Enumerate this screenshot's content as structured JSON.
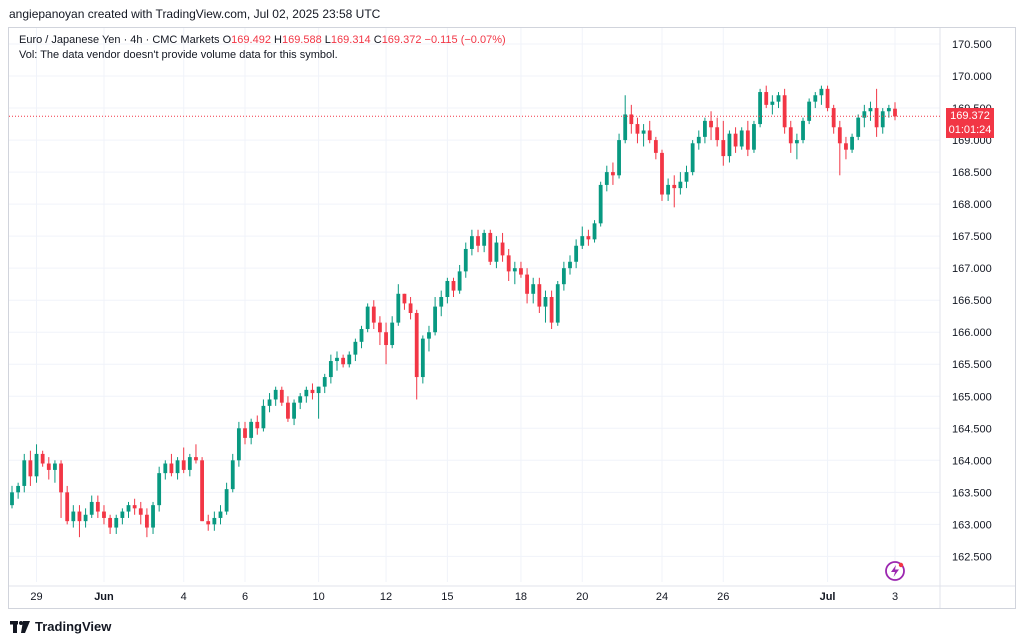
{
  "credit": "angiepanoyan created with TradingView.com, Jul 02, 2025 23:58 UTC",
  "legend": {
    "symbol": "Euro / Japanese Yen · 4h · CMC Markets",
    "o_label": "O",
    "o": "169.492",
    "h_label": "H",
    "h": "169.588",
    "l_label": "L",
    "l": "169.314",
    "c_label": "C",
    "c": "169.372",
    "change": "−0.115 (−0.07%)"
  },
  "vol_note": "Vol: The data vendor doesn't provide volume data for this symbol.",
  "last_price": {
    "price": "169.372",
    "countdown": "01:01:24"
  },
  "footer": {
    "brand": "TradingView"
  },
  "colors": {
    "up": "#089981",
    "down": "#f23645",
    "grid": "#f0f3fa",
    "axis_text": "#131722"
  },
  "icons": {
    "logo": "tradingview-logo-icon",
    "flash": "lightning-icon"
  },
  "chart_data": {
    "type": "candlestick",
    "title": "Euro / Japanese Yen · 4h · CMC Markets",
    "xlabel": "",
    "ylabel": "",
    "ylim": [
      162.1,
      170.75
    ],
    "y_ticks": [
      162.5,
      163.0,
      163.5,
      164.0,
      164.5,
      165.0,
      165.5,
      166.0,
      166.5,
      167.0,
      167.5,
      168.0,
      168.5,
      169.0,
      169.5,
      170.0,
      170.5
    ],
    "y_tick_labels": [
      "162.500",
      "163.000",
      "163.500",
      "164.000",
      "164.500",
      "165.000",
      "165.500",
      "166.000",
      "166.500",
      "167.000",
      "167.500",
      "168.000",
      "168.500",
      "169.000",
      "169.500",
      "170.000",
      "170.500"
    ],
    "x_ticks": [
      {
        "label": "29",
        "index": 4
      },
      {
        "label": "Jun",
        "index": 15
      },
      {
        "label": "4",
        "index": 28
      },
      {
        "label": "6",
        "index": 38
      },
      {
        "label": "10",
        "index": 50
      },
      {
        "label": "12",
        "index": 61
      },
      {
        "label": "15",
        "index": 71
      },
      {
        "label": "18",
        "index": 83
      },
      {
        "label": "20",
        "index": 93
      },
      {
        "label": "24",
        "index": 106
      },
      {
        "label": "26",
        "index": 116
      },
      {
        "label": "Jul",
        "index": 133
      },
      {
        "label": "3",
        "index": 144
      }
    ],
    "last_price": 169.372,
    "grid": true,
    "candles": [
      [
        163.3,
        163.6,
        163.25,
        163.5
      ],
      [
        163.5,
        163.65,
        163.4,
        163.6
      ],
      [
        163.6,
        164.1,
        163.5,
        164.0
      ],
      [
        164.0,
        164.15,
        163.6,
        163.75
      ],
      [
        163.75,
        164.25,
        163.65,
        164.1
      ],
      [
        164.1,
        164.15,
        163.9,
        163.95
      ],
      [
        163.95,
        164.05,
        163.7,
        163.85
      ],
      [
        163.85,
        164.0,
        163.65,
        163.95
      ],
      [
        163.95,
        164.0,
        163.1,
        163.5
      ],
      [
        163.5,
        163.6,
        163.0,
        163.05
      ],
      [
        163.05,
        163.3,
        162.95,
        163.2
      ],
      [
        163.2,
        163.3,
        162.8,
        163.05
      ],
      [
        163.05,
        163.25,
        162.95,
        163.15
      ],
      [
        163.15,
        163.45,
        163.1,
        163.35
      ],
      [
        163.35,
        163.45,
        163.1,
        163.2
      ],
      [
        163.2,
        163.3,
        163.0,
        163.1
      ],
      [
        163.1,
        163.15,
        162.85,
        162.95
      ],
      [
        162.95,
        163.15,
        162.85,
        163.1
      ],
      [
        163.1,
        163.25,
        163.0,
        163.2
      ],
      [
        163.2,
        163.35,
        163.1,
        163.3
      ],
      [
        163.3,
        163.4,
        163.15,
        163.25
      ],
      [
        163.25,
        163.35,
        163.0,
        163.15
      ],
      [
        163.15,
        163.25,
        162.8,
        162.95
      ],
      [
        162.95,
        163.35,
        162.85,
        163.3
      ],
      [
        163.3,
        163.9,
        163.2,
        163.8
      ],
      [
        163.8,
        164.0,
        163.7,
        163.95
      ],
      [
        163.95,
        164.1,
        163.75,
        163.8
      ],
      [
        163.8,
        164.05,
        163.7,
        164.0
      ],
      [
        164.0,
        164.2,
        163.8,
        163.85
      ],
      [
        163.85,
        164.1,
        163.75,
        164.05
      ],
      [
        164.05,
        164.25,
        163.95,
        164.0
      ],
      [
        164.0,
        164.05,
        163.05,
        163.05
      ],
      [
        163.05,
        163.15,
        162.9,
        163.0
      ],
      [
        163.0,
        163.2,
        162.9,
        163.1
      ],
      [
        163.1,
        163.3,
        163.0,
        163.2
      ],
      [
        163.2,
        163.65,
        163.15,
        163.55
      ],
      [
        163.55,
        164.1,
        163.5,
        164.0
      ],
      [
        164.0,
        164.6,
        163.9,
        164.5
      ],
      [
        164.5,
        164.6,
        164.25,
        164.35
      ],
      [
        164.35,
        164.65,
        164.25,
        164.6
      ],
      [
        164.6,
        164.7,
        164.4,
        164.5
      ],
      [
        164.5,
        164.95,
        164.45,
        164.85
      ],
      [
        164.85,
        165.05,
        164.75,
        164.95
      ],
      [
        164.95,
        165.15,
        164.85,
        165.1
      ],
      [
        165.1,
        165.15,
        164.85,
        164.9
      ],
      [
        164.9,
        165.0,
        164.6,
        164.65
      ],
      [
        164.65,
        164.95,
        164.55,
        164.9
      ],
      [
        164.9,
        165.05,
        164.8,
        165.0
      ],
      [
        165.0,
        165.15,
        164.9,
        165.1
      ],
      [
        165.1,
        165.2,
        164.95,
        165.05
      ],
      [
        165.05,
        165.15,
        164.65,
        165.15
      ],
      [
        165.15,
        165.35,
        165.05,
        165.3
      ],
      [
        165.3,
        165.65,
        165.2,
        165.55
      ],
      [
        165.55,
        165.7,
        165.4,
        165.6
      ],
      [
        165.6,
        165.65,
        165.45,
        165.5
      ],
      [
        165.5,
        165.7,
        165.45,
        165.65
      ],
      [
        165.65,
        165.9,
        165.55,
        165.85
      ],
      [
        165.85,
        166.1,
        165.75,
        166.05
      ],
      [
        166.05,
        166.45,
        166.0,
        166.4
      ],
      [
        166.4,
        166.5,
        166.05,
        166.15
      ],
      [
        166.15,
        166.25,
        165.8,
        166.0
      ],
      [
        166.0,
        166.15,
        165.5,
        165.8
      ],
      [
        165.8,
        166.25,
        165.75,
        166.15
      ],
      [
        166.15,
        166.75,
        166.1,
        166.6
      ],
      [
        166.6,
        166.6,
        166.35,
        166.45
      ],
      [
        166.45,
        166.55,
        166.2,
        166.3
      ],
      [
        166.3,
        166.35,
        164.95,
        165.3
      ],
      [
        165.3,
        165.95,
        165.2,
        165.9
      ],
      [
        165.9,
        166.1,
        165.7,
        166.0
      ],
      [
        166.0,
        166.55,
        165.95,
        166.4
      ],
      [
        166.4,
        166.65,
        166.25,
        166.55
      ],
      [
        166.55,
        166.85,
        166.45,
        166.8
      ],
      [
        166.8,
        166.85,
        166.55,
        166.65
      ],
      [
        166.65,
        167.05,
        166.6,
        166.95
      ],
      [
        166.95,
        167.4,
        166.85,
        167.3
      ],
      [
        167.3,
        167.6,
        167.2,
        167.5
      ],
      [
        167.5,
        167.6,
        167.25,
        167.35
      ],
      [
        167.35,
        167.6,
        167.25,
        167.55
      ],
      [
        167.55,
        167.6,
        167.05,
        167.1
      ],
      [
        167.1,
        167.5,
        167.0,
        167.4
      ],
      [
        167.4,
        167.55,
        167.1,
        167.2
      ],
      [
        167.2,
        167.3,
        166.8,
        166.95
      ],
      [
        166.95,
        167.1,
        166.75,
        167.0
      ],
      [
        167.0,
        167.1,
        166.85,
        166.9
      ],
      [
        166.9,
        167.0,
        166.45,
        166.6
      ],
      [
        166.6,
        166.85,
        166.45,
        166.75
      ],
      [
        166.75,
        166.85,
        166.3,
        166.4
      ],
      [
        166.4,
        166.65,
        166.15,
        166.55
      ],
      [
        166.55,
        166.65,
        166.05,
        166.15
      ],
      [
        166.15,
        166.8,
        166.1,
        166.75
      ],
      [
        166.75,
        167.1,
        166.65,
        167.0
      ],
      [
        167.0,
        167.2,
        166.9,
        167.1
      ],
      [
        167.1,
        167.45,
        167.0,
        167.35
      ],
      [
        167.35,
        167.65,
        167.3,
        167.5
      ],
      [
        167.5,
        167.6,
        167.35,
        167.45
      ],
      [
        167.45,
        167.75,
        167.4,
        167.7
      ],
      [
        167.7,
        168.35,
        167.65,
        168.3
      ],
      [
        168.3,
        168.6,
        168.2,
        168.5
      ],
      [
        168.5,
        168.65,
        168.3,
        168.45
      ],
      [
        168.45,
        169.1,
        168.4,
        169.0
      ],
      [
        169.0,
        169.7,
        168.95,
        169.4
      ],
      [
        169.4,
        169.55,
        169.1,
        169.25
      ],
      [
        169.25,
        169.35,
        168.95,
        169.1
      ],
      [
        169.1,
        169.25,
        168.9,
        169.15
      ],
      [
        169.15,
        169.3,
        168.95,
        169.0
      ],
      [
        169.0,
        169.05,
        168.7,
        168.8
      ],
      [
        168.8,
        168.85,
        168.05,
        168.15
      ],
      [
        168.15,
        168.4,
        168.05,
        168.3
      ],
      [
        168.3,
        168.45,
        167.95,
        168.25
      ],
      [
        168.25,
        168.5,
        168.15,
        168.35
      ],
      [
        168.35,
        168.6,
        168.25,
        168.5
      ],
      [
        168.5,
        169.0,
        168.45,
        168.95
      ],
      [
        168.95,
        169.15,
        168.85,
        169.05
      ],
      [
        169.05,
        169.35,
        168.95,
        169.3
      ],
      [
        169.3,
        169.45,
        169.0,
        169.2
      ],
      [
        169.2,
        169.35,
        168.9,
        169.0
      ],
      [
        169.0,
        169.3,
        168.6,
        168.75
      ],
      [
        168.75,
        169.15,
        168.65,
        169.1
      ],
      [
        169.1,
        169.2,
        168.8,
        168.9
      ],
      [
        168.9,
        169.2,
        168.85,
        169.15
      ],
      [
        169.15,
        169.3,
        168.75,
        168.85
      ],
      [
        168.85,
        169.3,
        168.8,
        169.25
      ],
      [
        169.25,
        169.8,
        169.2,
        169.75
      ],
      [
        169.75,
        169.85,
        169.5,
        169.55
      ],
      [
        169.55,
        169.7,
        169.4,
        169.6
      ],
      [
        169.6,
        169.75,
        169.5,
        169.7
      ],
      [
        169.7,
        169.8,
        169.1,
        169.2
      ],
      [
        169.2,
        169.3,
        168.8,
        168.95
      ],
      [
        168.95,
        169.1,
        168.7,
        169.0
      ],
      [
        169.0,
        169.35,
        168.95,
        169.3
      ],
      [
        169.3,
        169.65,
        169.25,
        169.6
      ],
      [
        169.6,
        169.75,
        169.5,
        169.7
      ],
      [
        169.7,
        169.85,
        169.55,
        169.8
      ],
      [
        169.8,
        169.85,
        169.45,
        169.5
      ],
      [
        169.5,
        169.55,
        169.1,
        169.2
      ],
      [
        169.2,
        169.3,
        168.45,
        168.95
      ],
      [
        168.95,
        169.05,
        168.7,
        168.85
      ],
      [
        168.85,
        169.1,
        168.8,
        169.05
      ],
      [
        169.05,
        169.4,
        169.0,
        169.35
      ],
      [
        169.35,
        169.55,
        169.2,
        169.45
      ],
      [
        169.45,
        169.6,
        169.3,
        169.5
      ],
      [
        169.5,
        169.8,
        169.05,
        169.2
      ],
      [
        169.2,
        169.5,
        169.1,
        169.45
      ],
      [
        169.45,
        169.55,
        169.35,
        169.5
      ],
      [
        169.49,
        169.59,
        169.31,
        169.37
      ]
    ]
  }
}
